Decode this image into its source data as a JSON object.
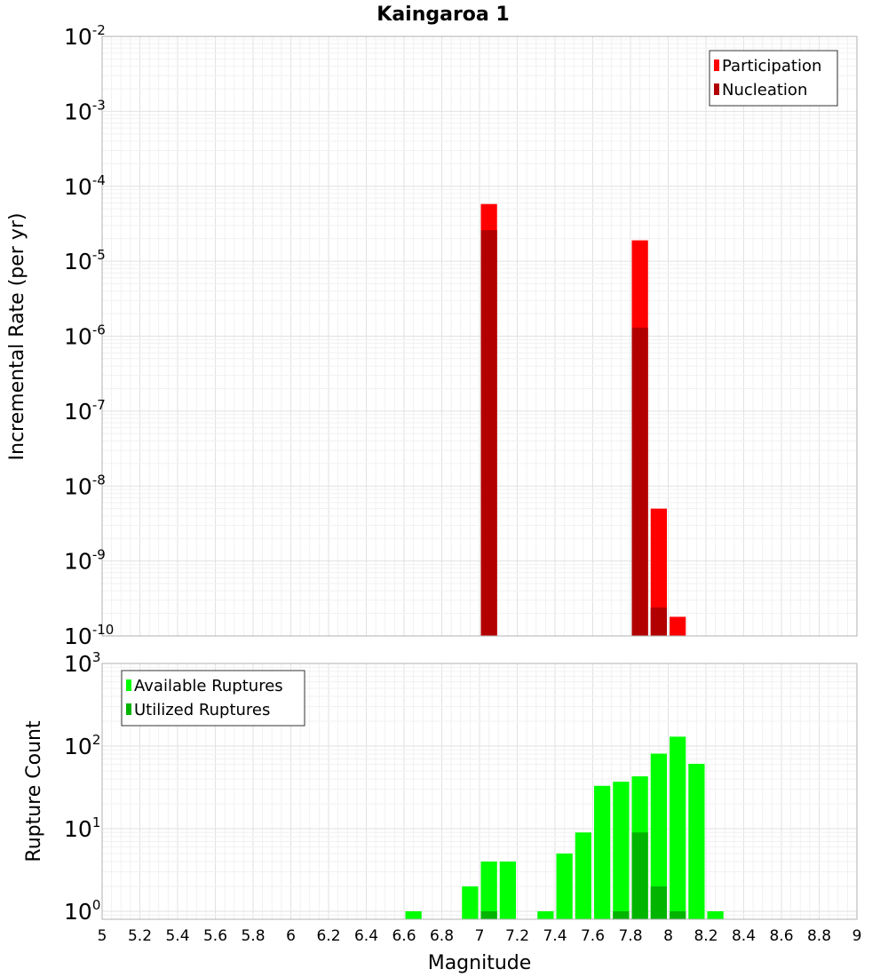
{
  "chart_data": [
    {
      "type": "bar",
      "title": "Kaingaroa 1",
      "xlabel": "",
      "ylabel": "Incremental Rate (per yr)",
      "yscale": "log",
      "ylim": [
        1e-10,
        0.01
      ],
      "xlim": [
        5,
        9
      ],
      "grid": true,
      "legend_position": "top-right",
      "series": [
        {
          "name": "Participation",
          "color": "#ff0000",
          "points": [
            {
              "x": 7.05,
              "y": 5.8e-05
            },
            {
              "x": 7.85,
              "y": 1.9e-05
            },
            {
              "x": 7.95,
              "y": 5e-09
            },
            {
              "x": 8.05,
              "y": 1.8e-10
            }
          ]
        },
        {
          "name": "Nucleation",
          "color": "#b20000",
          "points": [
            {
              "x": 7.05,
              "y": 2.6e-05
            },
            {
              "x": 7.85,
              "y": 1.3e-06
            },
            {
              "x": 7.95,
              "y": 2.4e-10
            }
          ]
        }
      ],
      "y_tick_labels": [
        {
          "base": "10",
          "exp": "-10"
        },
        {
          "base": "10",
          "exp": "-9"
        },
        {
          "base": "10",
          "exp": "-8"
        },
        {
          "base": "10",
          "exp": "-7"
        },
        {
          "base": "10",
          "exp": "-6"
        },
        {
          "base": "10",
          "exp": "-5"
        },
        {
          "base": "10",
          "exp": "-4"
        },
        {
          "base": "10",
          "exp": "-3"
        },
        {
          "base": "10",
          "exp": "-2"
        }
      ]
    },
    {
      "type": "bar",
      "title": "",
      "xlabel": "Magnitude",
      "ylabel": "Rupture Count",
      "yscale": "log",
      "ylim": [
        0.8,
        1000
      ],
      "xlim": [
        5,
        9
      ],
      "grid": true,
      "legend_position": "top-left",
      "series": [
        {
          "name": "Available Ruptures",
          "color": "#00ff00",
          "points": [
            {
              "x": 6.65,
              "y": 1
            },
            {
              "x": 6.95,
              "y": 2
            },
            {
              "x": 7.05,
              "y": 4
            },
            {
              "x": 7.15,
              "y": 4
            },
            {
              "x": 7.35,
              "y": 1
            },
            {
              "x": 7.45,
              "y": 5
            },
            {
              "x": 7.55,
              "y": 9
            },
            {
              "x": 7.65,
              "y": 33
            },
            {
              "x": 7.75,
              "y": 37
            },
            {
              "x": 7.85,
              "y": 43
            },
            {
              "x": 7.95,
              "y": 81
            },
            {
              "x": 8.05,
              "y": 130
            },
            {
              "x": 8.15,
              "y": 61
            },
            {
              "x": 8.25,
              "y": 1
            }
          ]
        },
        {
          "name": "Utilized Ruptures",
          "color": "#00b400",
          "points": [
            {
              "x": 7.05,
              "y": 1
            },
            {
              "x": 7.75,
              "y": 1
            },
            {
              "x": 7.85,
              "y": 9
            },
            {
              "x": 7.95,
              "y": 2
            },
            {
              "x": 8.05,
              "y": 1
            }
          ]
        }
      ],
      "y_tick_labels": [
        {
          "base": "10",
          "exp": "0"
        },
        {
          "base": "10",
          "exp": "1"
        },
        {
          "base": "10",
          "exp": "2"
        },
        {
          "base": "10",
          "exp": "3"
        }
      ],
      "x_tick_labels": [
        "5",
        "5.2",
        "5.4",
        "5.6",
        "5.8",
        "6",
        "6.2",
        "6.4",
        "6.6",
        "6.8",
        "7",
        "7.2",
        "7.4",
        "7.6",
        "7.8",
        "8",
        "8.2",
        "8.4",
        "8.6",
        "8.8",
        "9"
      ]
    }
  ]
}
